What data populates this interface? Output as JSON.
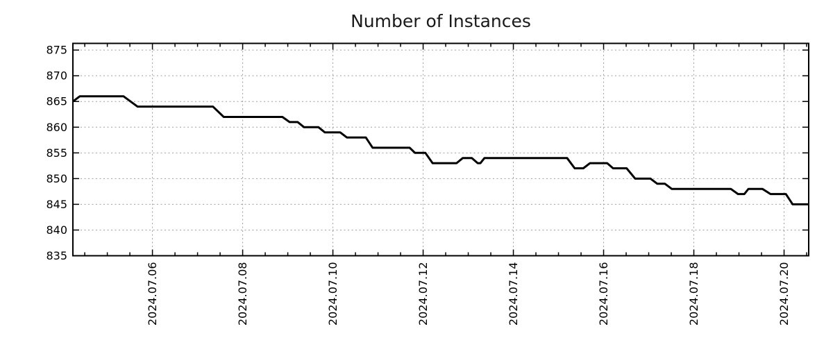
{
  "chart_data": {
    "type": "line",
    "title": "Number of Instances",
    "legend": {
      "show": false
    },
    "grid": {
      "show": true,
      "style": "dashed",
      "at": "major ticks, both axes"
    },
    "x_axis": {
      "label": "",
      "unit": "day of July 2024 (decimal)",
      "min": 4.237,
      "max": 20.546,
      "major_ticks": [
        6,
        8,
        10,
        12,
        14,
        16,
        18,
        20
      ],
      "major_tick_labels": [
        "2024.07.06",
        "2024.07.08",
        "2024.07.10",
        "2024.07.12",
        "2024.07.14",
        "2024.07.16",
        "2024.07.18",
        "2024.07.20"
      ],
      "minor_tick_interval": 0.5,
      "tick_label_rotation_deg": -90
    },
    "y_axis": {
      "label": "",
      "min": 835,
      "max": 876.3,
      "ticks": [
        835,
        840,
        845,
        850,
        855,
        860,
        865,
        870,
        875
      ]
    },
    "series": [
      {
        "name": "Number of Instances",
        "color": "#000000",
        "line_width": 3,
        "points": [
          [
            4.237,
            865
          ],
          [
            4.39,
            866
          ],
          [
            5.36,
            866
          ],
          [
            5.67,
            864
          ],
          [
            7.34,
            864
          ],
          [
            7.58,
            862
          ],
          [
            8.88,
            862
          ],
          [
            9.04,
            861
          ],
          [
            9.22,
            861
          ],
          [
            9.36,
            860
          ],
          [
            9.68,
            860
          ],
          [
            9.82,
            859
          ],
          [
            10.16,
            859
          ],
          [
            10.31,
            858
          ],
          [
            10.73,
            858
          ],
          [
            10.88,
            856
          ],
          [
            11.7,
            856
          ],
          [
            11.82,
            855
          ],
          [
            12.05,
            855
          ],
          [
            12.21,
            853
          ],
          [
            12.74,
            853
          ],
          [
            12.88,
            854
          ],
          [
            13.08,
            854
          ],
          [
            13.21,
            853
          ],
          [
            13.27,
            853
          ],
          [
            13.36,
            854
          ],
          [
            15.19,
            854
          ],
          [
            15.36,
            852
          ],
          [
            15.55,
            852
          ],
          [
            15.7,
            853
          ],
          [
            16.08,
            853
          ],
          [
            16.21,
            852
          ],
          [
            16.51,
            852
          ],
          [
            16.7,
            850
          ],
          [
            17.04,
            850
          ],
          [
            17.19,
            849
          ],
          [
            17.36,
            849
          ],
          [
            17.51,
            848
          ],
          [
            18.82,
            848
          ],
          [
            18.98,
            847
          ],
          [
            19.12,
            847
          ],
          [
            19.21,
            848
          ],
          [
            19.52,
            848
          ],
          [
            19.7,
            847
          ],
          [
            20.04,
            847
          ],
          [
            20.19,
            845
          ],
          [
            20.546,
            845
          ]
        ]
      }
    ]
  },
  "colors": {
    "background": "#ffffff",
    "axis": "#000000",
    "grid": "#9e9e9e",
    "line": "#000000",
    "title_text": "#1a1a1a",
    "tick_text": "#000000"
  }
}
